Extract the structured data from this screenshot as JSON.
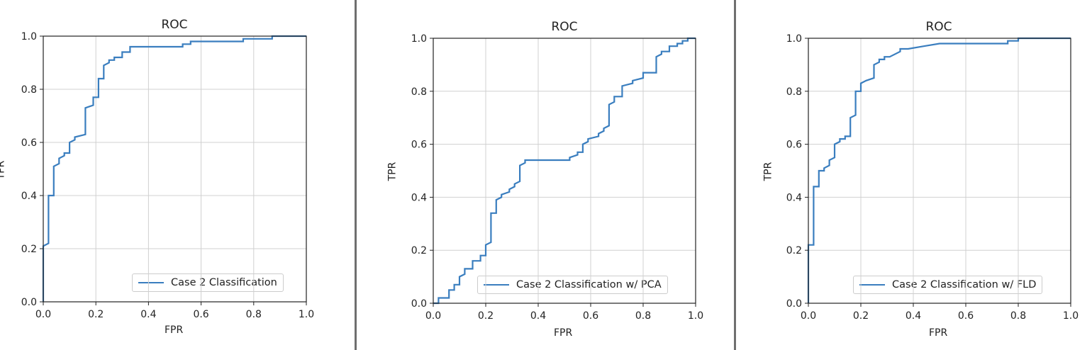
{
  "colors": {
    "line": "#3a7ebf",
    "grid": "#d0d0d0",
    "frame": "#222222",
    "divider": "#6f6f6f"
  },
  "chart_data": [
    {
      "type": "line",
      "title": "ROC",
      "xlabel": "FPR",
      "ylabel": "TPR",
      "xlim": [
        0,
        1
      ],
      "ylim": [
        0,
        1
      ],
      "xticks": [
        "0.0",
        "0.2",
        "0.4",
        "0.6",
        "0.8",
        "1.0"
      ],
      "yticks": [
        "0.0",
        "0.2",
        "0.4",
        "0.6",
        "0.8",
        "1.0"
      ],
      "grid": true,
      "legend_position": "lower-right",
      "series": [
        {
          "name": "Case 2 Classification",
          "x": [
            0,
            0,
            0.02,
            0.02,
            0.04,
            0.04,
            0.06,
            0.06,
            0.08,
            0.08,
            0.1,
            0.1,
            0.12,
            0.12,
            0.16,
            0.16,
            0.19,
            0.19,
            0.21,
            0.21,
            0.23,
            0.23,
            0.25,
            0.25,
            0.27,
            0.27,
            0.3,
            0.3,
            0.33,
            0.33,
            0.35,
            0.35,
            0.53,
            0.53,
            0.56,
            0.56,
            0.76,
            0.76,
            0.87,
            0.87,
            0.9,
            1.0
          ],
          "y": [
            0,
            0.21,
            0.22,
            0.4,
            0.4,
            0.51,
            0.52,
            0.54,
            0.55,
            0.56,
            0.56,
            0.6,
            0.61,
            0.62,
            0.63,
            0.73,
            0.74,
            0.77,
            0.77,
            0.84,
            0.84,
            0.89,
            0.9,
            0.91,
            0.91,
            0.92,
            0.92,
            0.94,
            0.94,
            0.96,
            0.96,
            0.96,
            0.96,
            0.97,
            0.97,
            0.98,
            0.98,
            0.99,
            0.99,
            1.0,
            1.0,
            1.0
          ]
        }
      ]
    },
    {
      "type": "line",
      "title": "ROC",
      "xlabel": "FPR",
      "ylabel": "TPR",
      "xlim": [
        0,
        1
      ],
      "ylim": [
        0,
        1
      ],
      "xticks": [
        "0.0",
        "0.2",
        "0.4",
        "0.6",
        "0.8",
        "1.0"
      ],
      "yticks": [
        "0.0",
        "0.2",
        "0.4",
        "0.6",
        "0.8",
        "1.0"
      ],
      "grid": true,
      "legend_position": "lower-right",
      "series": [
        {
          "name": "Case 2 Classification w/ PCA",
          "x": [
            0,
            0.02,
            0.02,
            0.06,
            0.06,
            0.08,
            0.08,
            0.1,
            0.1,
            0.12,
            0.12,
            0.15,
            0.15,
            0.18,
            0.18,
            0.2,
            0.2,
            0.22,
            0.22,
            0.24,
            0.24,
            0.26,
            0.26,
            0.29,
            0.29,
            0.31,
            0.31,
            0.33,
            0.33,
            0.35,
            0.35,
            0.37,
            0.37,
            0.52,
            0.52,
            0.55,
            0.55,
            0.57,
            0.57,
            0.59,
            0.59,
            0.63,
            0.63,
            0.65,
            0.65,
            0.67,
            0.67,
            0.69,
            0.69,
            0.72,
            0.72,
            0.76,
            0.76,
            0.8,
            0.8,
            0.85,
            0.85,
            0.87,
            0.87,
            0.9,
            0.9,
            0.93,
            0.93,
            0.95,
            0.95,
            0.97,
            0.97,
            1.0
          ],
          "y": [
            0,
            0,
            0.02,
            0.02,
            0.05,
            0.05,
            0.07,
            0.07,
            0.1,
            0.11,
            0.13,
            0.13,
            0.16,
            0.16,
            0.18,
            0.18,
            0.22,
            0.23,
            0.34,
            0.34,
            0.39,
            0.4,
            0.41,
            0.42,
            0.43,
            0.44,
            0.45,
            0.46,
            0.52,
            0.53,
            0.54,
            0.54,
            0.54,
            0.54,
            0.55,
            0.56,
            0.57,
            0.57,
            0.6,
            0.61,
            0.62,
            0.63,
            0.64,
            0.65,
            0.66,
            0.67,
            0.75,
            0.76,
            0.78,
            0.78,
            0.82,
            0.83,
            0.84,
            0.85,
            0.87,
            0.87,
            0.93,
            0.94,
            0.95,
            0.95,
            0.97,
            0.97,
            0.98,
            0.98,
            0.99,
            0.99,
            1.0,
            1.0
          ]
        }
      ]
    },
    {
      "type": "line",
      "title": "ROC",
      "xlabel": "FPR",
      "ylabel": "TPR",
      "xlim": [
        0,
        1
      ],
      "ylim": [
        0,
        1
      ],
      "xticks": [
        "0.0",
        "0.2",
        "0.4",
        "0.6",
        "0.8",
        "1.0"
      ],
      "yticks": [
        "0.0",
        "0.2",
        "0.4",
        "0.6",
        "0.8",
        "1.0"
      ],
      "grid": true,
      "legend_position": "lower-right",
      "series": [
        {
          "name": "Case 2 Classification w/ FLD",
          "x": [
            0,
            0,
            0.02,
            0.02,
            0.04,
            0.04,
            0.06,
            0.06,
            0.08,
            0.08,
            0.1,
            0.1,
            0.12,
            0.12,
            0.14,
            0.14,
            0.16,
            0.16,
            0.18,
            0.18,
            0.2,
            0.2,
            0.22,
            0.22,
            0.25,
            0.25,
            0.27,
            0.27,
            0.29,
            0.29,
            0.31,
            0.31,
            0.35,
            0.35,
            0.38,
            0.38,
            0.44,
            0.44,
            0.5,
            0.5,
            0.76,
            0.76,
            0.8,
            0.8,
            1.0
          ],
          "y": [
            0,
            0.22,
            0.22,
            0.44,
            0.44,
            0.5,
            0.5,
            0.51,
            0.52,
            0.54,
            0.55,
            0.6,
            0.61,
            0.62,
            0.62,
            0.63,
            0.63,
            0.7,
            0.71,
            0.8,
            0.8,
            0.83,
            0.84,
            0.84,
            0.85,
            0.9,
            0.91,
            0.92,
            0.92,
            0.93,
            0.93,
            0.93,
            0.95,
            0.96,
            0.96,
            0.96,
            0.97,
            0.97,
            0.98,
            0.98,
            0.98,
            0.99,
            0.99,
            1.0,
            1.0
          ]
        }
      ]
    }
  ]
}
